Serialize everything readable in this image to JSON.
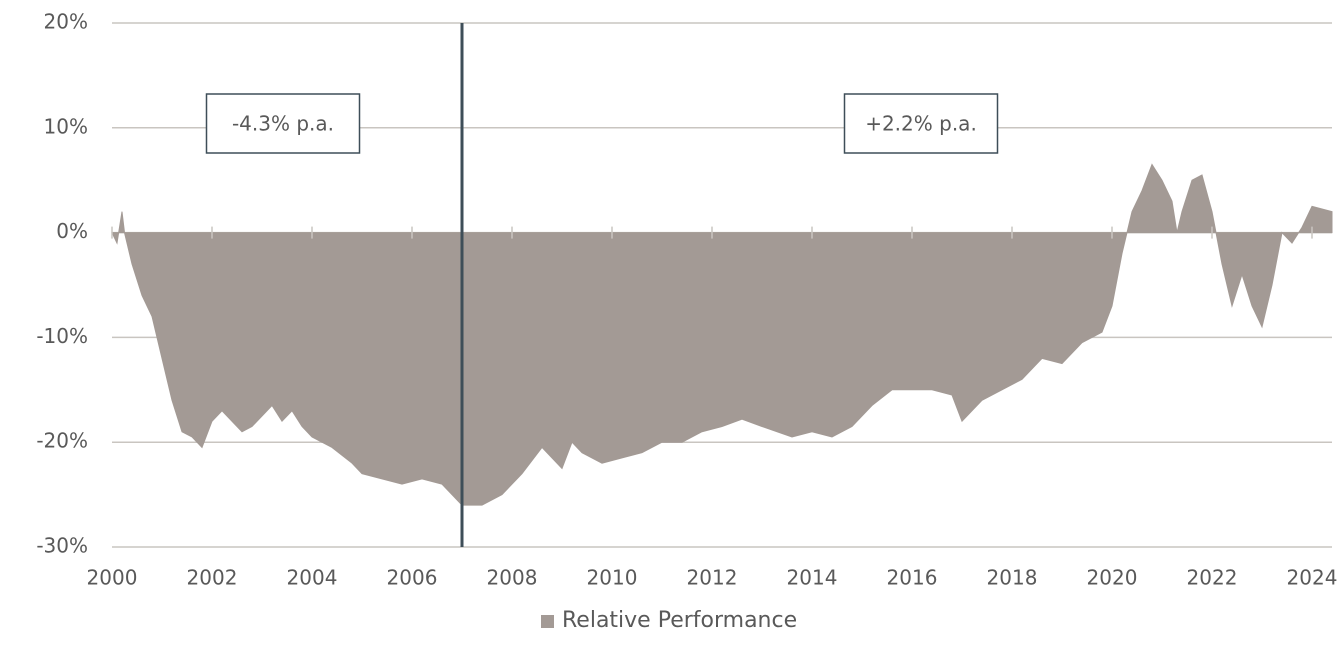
{
  "chart_data": {
    "type": "area",
    "x": [
      2000.0,
      2000.1,
      2000.2,
      2000.25,
      2000.4,
      2000.6,
      2000.8,
      2001.0,
      2001.2,
      2001.4,
      2001.6,
      2001.8,
      2002.0,
      2002.2,
      2002.4,
      2002.6,
      2002.8,
      2003.0,
      2003.2,
      2003.4,
      2003.6,
      2003.8,
      2004.0,
      2004.4,
      2004.8,
      2005.0,
      2005.4,
      2005.8,
      2006.2,
      2006.6,
      2007.0,
      2007.4,
      2007.8,
      2008.2,
      2008.6,
      2009.0,
      2009.2,
      2009.4,
      2009.8,
      2010.2,
      2010.6,
      2011.0,
      2011.4,
      2011.8,
      2012.2,
      2012.6,
      2013.0,
      2013.6,
      2014.0,
      2014.4,
      2014.8,
      2015.2,
      2015.6,
      2016.0,
      2016.4,
      2016.8,
      2017.0,
      2017.4,
      2017.8,
      2018.2,
      2018.6,
      2019.0,
      2019.4,
      2019.8,
      2020.0,
      2020.2,
      2020.4,
      2020.6,
      2020.8,
      2021.0,
      2021.2,
      2021.3,
      2021.4,
      2021.6,
      2021.8,
      2022.0,
      2022.2,
      2022.4,
      2022.6,
      2022.8,
      2023.0,
      2023.2,
      2023.4,
      2023.6,
      2023.8,
      2024.0,
      2024.4
    ],
    "series": [
      {
        "name": "Relative Performance",
        "color": "#a39a95",
        "values": [
          0,
          -1,
          2,
          0,
          -3,
          -6,
          -8,
          -12,
          -16,
          -19,
          -19.5,
          -20.5,
          -18,
          -17,
          -18,
          -19,
          -18.5,
          -17.5,
          -16.5,
          -18,
          -17,
          -18.5,
          -19.5,
          -20.5,
          -22,
          -23,
          -23.5,
          -24,
          -23.5,
          -24,
          -26,
          -26,
          -25,
          -23,
          -20.5,
          -22.5,
          -20,
          -21,
          -22,
          -21.5,
          -21,
          -20,
          -20,
          -19,
          -18.5,
          -17.8,
          -18.5,
          -19.5,
          -19,
          -19.5,
          -18.5,
          -16.5,
          -15,
          -15,
          -15,
          -15.5,
          -18,
          -16,
          -15,
          -14,
          -12,
          -12.5,
          -10.5,
          -9.5,
          -7,
          -2,
          2,
          4,
          6.5,
          5,
          3,
          0,
          2,
          5,
          5.5,
          2,
          -3,
          -7,
          -4,
          -7,
          -9,
          -5,
          0,
          -1,
          0.5,
          2.5,
          2
        ]
      }
    ],
    "xlim": [
      2000,
      2024.4
    ],
    "ylim": [
      -30,
      20
    ],
    "xticks": [
      2000,
      2002,
      2004,
      2006,
      2008,
      2010,
      2012,
      2014,
      2016,
      2018,
      2020,
      2022,
      2024
    ],
    "yticks": [
      {
        "value": -30,
        "label": "-30%"
      },
      {
        "value": -20,
        "label": "-20%"
      },
      {
        "value": -10,
        "label": "-10%"
      },
      {
        "value": 0,
        "label": "0%"
      },
      {
        "value": 10,
        "label": "10%"
      },
      {
        "value": 20,
        "label": "20%"
      }
    ],
    "vline_x": 2007,
    "annotations": [
      "-4.3% p.a.",
      "+2.2% p.a."
    ],
    "grid": true
  }
}
